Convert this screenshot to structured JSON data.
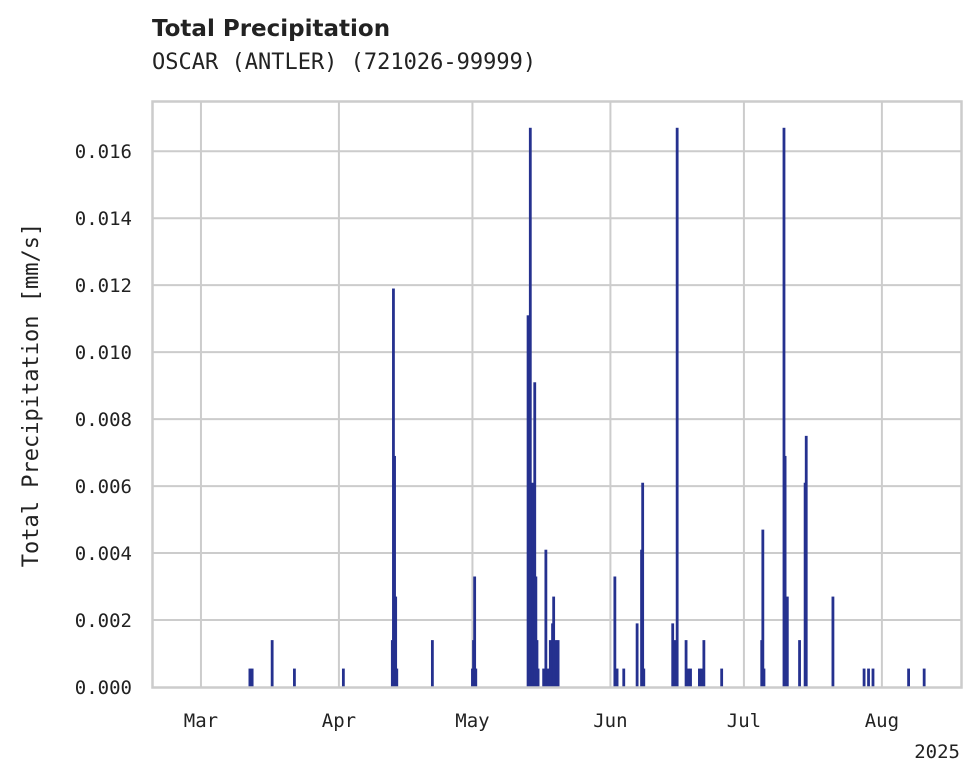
{
  "chart_data": {
    "type": "bar",
    "title": "Total Precipitation",
    "subtitle": "OSCAR (ANTLER) (721026-99999)",
    "ylabel": "Total Precipitation [mm/s]",
    "xlabel": "",
    "year_label": "2025",
    "x_axis": {
      "type": "date",
      "range": [
        "2025-02-18",
        "2025-08-19"
      ],
      "ticks": [
        {
          "date": "2025-03-01",
          "label": "Mar"
        },
        {
          "date": "2025-04-01",
          "label": "Apr"
        },
        {
          "date": "2025-05-01",
          "label": "May"
        },
        {
          "date": "2025-06-01",
          "label": "Jun"
        },
        {
          "date": "2025-07-01",
          "label": "Jul"
        },
        {
          "date": "2025-08-01",
          "label": "Aug"
        }
      ]
    },
    "y_axis": {
      "range": [
        0,
        0.0175
      ],
      "ticks": [
        "0.000",
        "0.002",
        "0.004",
        "0.006",
        "0.008",
        "0.010",
        "0.012",
        "0.014",
        "0.016"
      ]
    },
    "grid": true,
    "series": [
      {
        "color": "#25318f",
        "points": [
          {
            "x": "2025-03-12",
            "y": 0.00055
          },
          {
            "x": "2025-03-12T12:00",
            "y": 0.00055
          },
          {
            "x": "2025-03-17",
            "y": 0.0014
          },
          {
            "x": "2025-03-22",
            "y": 0.00055
          },
          {
            "x": "2025-04-02",
            "y": 0.00055
          },
          {
            "x": "2025-04-13",
            "y": 0.0014
          },
          {
            "x": "2025-04-13T06:00",
            "y": 0.0119
          },
          {
            "x": "2025-04-13T12:00",
            "y": 0.0069
          },
          {
            "x": "2025-04-13T18:00",
            "y": 0.0027
          },
          {
            "x": "2025-04-14",
            "y": 0.00055
          },
          {
            "x": "2025-04-22",
            "y": 0.0014
          },
          {
            "x": "2025-05-01",
            "y": 0.00055
          },
          {
            "x": "2025-05-01T06:00",
            "y": 0.0014
          },
          {
            "x": "2025-05-01T12:00",
            "y": 0.0033
          },
          {
            "x": "2025-05-01T18:00",
            "y": 0.00055
          },
          {
            "x": "2025-05-13T12:00",
            "y": 0.0111
          },
          {
            "x": "2025-05-13T18:00",
            "y": 0.0042
          },
          {
            "x": "2025-05-14",
            "y": 0.0167
          },
          {
            "x": "2025-05-14T06:00",
            "y": 0.0014
          },
          {
            "x": "2025-05-14T12:00",
            "y": 0.0061
          },
          {
            "x": "2025-05-14T18:00",
            "y": 0.0042
          },
          {
            "x": "2025-05-15",
            "y": 0.0091
          },
          {
            "x": "2025-05-15T06:00",
            "y": 0.0033
          },
          {
            "x": "2025-05-15T12:00",
            "y": 0.0014
          },
          {
            "x": "2025-05-15T18:00",
            "y": 0.00055
          },
          {
            "x": "2025-05-17",
            "y": 0.00055
          },
          {
            "x": "2025-05-17T12:00",
            "y": 0.0041
          },
          {
            "x": "2025-05-18",
            "y": 0.00055
          },
          {
            "x": "2025-05-18T12:00",
            "y": 0.0014
          },
          {
            "x": "2025-05-19",
            "y": 0.0019
          },
          {
            "x": "2025-05-19T06:00",
            "y": 0.0027
          },
          {
            "x": "2025-05-19T18:00",
            "y": 0.0014
          },
          {
            "x": "2025-05-20",
            "y": 0.00055
          },
          {
            "x": "2025-05-20T06:00",
            "y": 0.0014
          },
          {
            "x": "2025-06-02",
            "y": 0.0033
          },
          {
            "x": "2025-06-02T12:00",
            "y": 0.00055
          },
          {
            "x": "2025-06-04",
            "y": 0.00055
          },
          {
            "x": "2025-06-07",
            "y": 0.0019
          },
          {
            "x": "2025-06-08",
            "y": 0.0041
          },
          {
            "x": "2025-06-08T06:00",
            "y": 0.0061
          },
          {
            "x": "2025-06-08T12:00",
            "y": 0.00055
          },
          {
            "x": "2025-06-15",
            "y": 0.0019
          },
          {
            "x": "2025-06-15T12:00",
            "y": 0.0014
          },
          {
            "x": "2025-06-16",
            "y": 0.0167
          },
          {
            "x": "2025-06-18",
            "y": 0.0014
          },
          {
            "x": "2025-06-18T12:00",
            "y": 0.00055
          },
          {
            "x": "2025-06-19",
            "y": 0.00055
          },
          {
            "x": "2025-06-21",
            "y": 0.00055
          },
          {
            "x": "2025-06-21T12:00",
            "y": 0.00055
          },
          {
            "x": "2025-06-22",
            "y": 0.0014
          },
          {
            "x": "2025-06-26",
            "y": 0.00055
          },
          {
            "x": "2025-07-05",
            "y": 0.0014
          },
          {
            "x": "2025-07-05T06:00",
            "y": 0.0047
          },
          {
            "x": "2025-07-05T12:00",
            "y": 0.00055
          },
          {
            "x": "2025-07-10",
            "y": 0.0167
          },
          {
            "x": "2025-07-10T06:00",
            "y": 0.0069
          },
          {
            "x": "2025-07-10T18:00",
            "y": 0.0027
          },
          {
            "x": "2025-07-13T12:00",
            "y": 0.0014
          },
          {
            "x": "2025-07-14T18:00",
            "y": 0.0061
          },
          {
            "x": "2025-07-15",
            "y": 0.0075
          },
          {
            "x": "2025-07-21",
            "y": 0.0027
          },
          {
            "x": "2025-07-28",
            "y": 0.00055
          },
          {
            "x": "2025-07-29",
            "y": 0.00055
          },
          {
            "x": "2025-07-30",
            "y": 0.00055
          },
          {
            "x": "2025-08-07",
            "y": 0.00055
          },
          {
            "x": "2025-08-10T12:00",
            "y": 0.00055
          }
        ]
      }
    ]
  }
}
